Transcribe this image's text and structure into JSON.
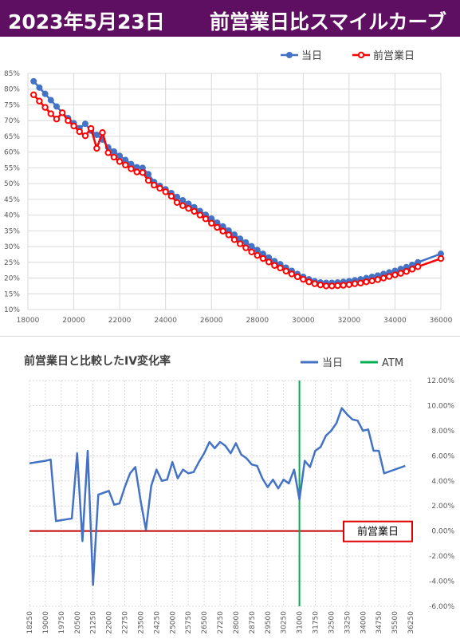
{
  "header": {
    "date": "2023年5月23日",
    "title": "前営業日比スマイルカーブ"
  },
  "chart_data": [
    {
      "type": "line",
      "title": "",
      "xlabel": "",
      "ylabel": "",
      "xlim": [
        18000,
        36000
      ],
      "ylim": [
        0.1,
        0.85
      ],
      "x_ticks": [
        18000,
        20000,
        22000,
        24000,
        26000,
        28000,
        30000,
        32000,
        34000,
        36000
      ],
      "y_ticks": [
        0.1,
        0.15,
        0.2,
        0.25,
        0.3,
        0.35,
        0.4,
        0.45,
        0.5,
        0.55,
        0.6,
        0.65,
        0.7,
        0.75,
        0.8,
        0.85
      ],
      "y_format": "percent0",
      "grid": true,
      "legend": "top-right",
      "series": [
        {
          "name": "当日",
          "color": "#4472c4",
          "points": [
            [
              18250,
              0.825
            ],
            [
              18500,
              0.805
            ],
            [
              18750,
              0.785
            ],
            [
              19000,
              0.765
            ],
            [
              19250,
              0.745
            ],
            [
              19500,
              0.725
            ],
            [
              19750,
              0.708
            ],
            [
              20000,
              0.692
            ],
            [
              20250,
              0.676
            ],
            [
              20500,
              0.69
            ],
            [
              20750,
              0.668
            ],
            [
              21000,
              0.655
            ],
            [
              21250,
              0.64
            ],
            [
              21500,
              0.615
            ],
            [
              21750,
              0.602
            ],
            [
              22000,
              0.588
            ],
            [
              22250,
              0.575
            ],
            [
              22500,
              0.562
            ],
            [
              22750,
              0.552
            ],
            [
              23000,
              0.55
            ],
            [
              23250,
              0.53
            ],
            [
              23500,
              0.505
            ],
            [
              23750,
              0.493
            ],
            [
              24000,
              0.482
            ],
            [
              24250,
              0.47
            ],
            [
              24500,
              0.458
            ],
            [
              24750,
              0.447
            ],
            [
              25000,
              0.436
            ],
            [
              25250,
              0.425
            ],
            [
              25500,
              0.413
            ],
            [
              25750,
              0.401
            ],
            [
              26000,
              0.389
            ],
            [
              26250,
              0.376
            ],
            [
              26500,
              0.364
            ],
            [
              26750,
              0.351
            ],
            [
              27000,
              0.338
            ],
            [
              27250,
              0.325
            ],
            [
              27500,
              0.313
            ],
            [
              27750,
              0.301
            ],
            [
              28000,
              0.289
            ],
            [
              28250,
              0.277
            ],
            [
              28500,
              0.265
            ],
            [
              28750,
              0.254
            ],
            [
              29000,
              0.244
            ],
            [
              29250,
              0.233
            ],
            [
              29500,
              0.223
            ],
            [
              29750,
              0.213
            ],
            [
              30000,
              0.204
            ],
            [
              30250,
              0.196
            ],
            [
              30500,
              0.19
            ],
            [
              30750,
              0.186
            ],
            [
              31000,
              0.185
            ],
            [
              31250,
              0.185
            ],
            [
              31500,
              0.186
            ],
            [
              31750,
              0.188
            ],
            [
              32000,
              0.19
            ],
            [
              32250,
              0.193
            ],
            [
              32500,
              0.196
            ],
            [
              32750,
              0.2
            ],
            [
              33000,
              0.204
            ],
            [
              33250,
              0.208
            ],
            [
              33500,
              0.213
            ],
            [
              33750,
              0.218
            ],
            [
              34000,
              0.223
            ],
            [
              34250,
              0.229
            ],
            [
              34500,
              0.235
            ],
            [
              34750,
              0.242
            ],
            [
              35000,
              0.25
            ],
            [
              36000,
              0.277
            ]
          ]
        },
        {
          "name": "前営業日",
          "color": "#ff0000",
          "points": [
            [
              18250,
              0.782
            ],
            [
              18500,
              0.762
            ],
            [
              18750,
              0.742
            ],
            [
              19000,
              0.722
            ],
            [
              19250,
              0.705
            ],
            [
              19500,
              0.725
            ],
            [
              19750,
              0.7
            ],
            [
              20000,
              0.683
            ],
            [
              20250,
              0.665
            ],
            [
              20500,
              0.652
            ],
            [
              20750,
              0.675
            ],
            [
              21000,
              0.612
            ],
            [
              21250,
              0.662
            ],
            [
              21500,
              0.598
            ],
            [
              21750,
              0.584
            ],
            [
              22000,
              0.57
            ],
            [
              22250,
              0.559
            ],
            [
              22500,
              0.547
            ],
            [
              22750,
              0.537
            ],
            [
              23000,
              0.535
            ],
            [
              23250,
              0.51
            ],
            [
              23500,
              0.495
            ],
            [
              23750,
              0.485
            ],
            [
              24000,
              0.474
            ],
            [
              24250,
              0.46
            ],
            [
              24500,
              0.44
            ],
            [
              24750,
              0.43
            ],
            [
              25000,
              0.421
            ],
            [
              25250,
              0.412
            ],
            [
              25500,
              0.4
            ],
            [
              25750,
              0.388
            ],
            [
              26000,
              0.374
            ],
            [
              26250,
              0.361
            ],
            [
              26500,
              0.349
            ],
            [
              26750,
              0.337
            ],
            [
              27000,
              0.322
            ],
            [
              27250,
              0.309
            ],
            [
              27500,
              0.296
            ],
            [
              27750,
              0.283
            ],
            [
              28000,
              0.272
            ],
            [
              28250,
              0.262
            ],
            [
              28500,
              0.251
            ],
            [
              28750,
              0.24
            ],
            [
              29000,
              0.232
            ],
            [
              29250,
              0.222
            ],
            [
              29500,
              0.213
            ],
            [
              29750,
              0.204
            ],
            [
              30000,
              0.196
            ],
            [
              30250,
              0.188
            ],
            [
              30500,
              0.182
            ],
            [
              30750,
              0.178
            ],
            [
              31000,
              0.175
            ],
            [
              31250,
              0.175
            ],
            [
              31500,
              0.176
            ],
            [
              31750,
              0.177
            ],
            [
              32000,
              0.179
            ],
            [
              32250,
              0.182
            ],
            [
              32500,
              0.184
            ],
            [
              32750,
              0.188
            ],
            [
              33000,
              0.191
            ],
            [
              33250,
              0.195
            ],
            [
              33500,
              0.2
            ],
            [
              33750,
              0.205
            ],
            [
              34000,
              0.21
            ],
            [
              34250,
              0.215
            ],
            [
              34500,
              0.221
            ],
            [
              34750,
              0.228
            ],
            [
              35000,
              0.236
            ],
            [
              36000,
              0.262
            ]
          ]
        }
      ]
    },
    {
      "type": "line",
      "title": "前営業日と比較したIV変化率",
      "xlabel": "",
      "ylabel": "",
      "xlim": [
        18250,
        36250
      ],
      "ylim": [
        -0.06,
        0.12
      ],
      "x_ticks": [
        18250,
        19000,
        19750,
        20500,
        21250,
        22000,
        22750,
        23500,
        24250,
        25000,
        25750,
        26500,
        27250,
        28000,
        28750,
        29500,
        30250,
        31000,
        31750,
        32500,
        33250,
        34000,
        34750,
        35500,
        36250
      ],
      "y_ticks": [
        -0.06,
        -0.04,
        -0.02,
        0.0,
        0.02,
        0.04,
        0.06,
        0.08,
        0.1,
        0.12
      ],
      "y_format": "percent2",
      "y_axis_position": "right",
      "grid": true,
      "legend": "top-right",
      "atm_x": 31000,
      "reference_line_y": 0,
      "reference_label": "前営業日",
      "series": [
        {
          "name": "当日",
          "color": "#4472c4",
          "points": [
            [
              18250,
              0.054
            ],
            [
              19000,
              0.056
            ],
            [
              19250,
              0.057
            ],
            [
              19500,
              0.008
            ],
            [
              20250,
              0.01
            ],
            [
              20500,
              0.062
            ],
            [
              20750,
              -0.008
            ],
            [
              21000,
              0.064
            ],
            [
              21250,
              -0.043
            ],
            [
              21500,
              0.029
            ],
            [
              22000,
              0.032
            ],
            [
              22250,
              0.021
            ],
            [
              22500,
              0.022
            ],
            [
              22750,
              0.035
            ],
            [
              23000,
              0.046
            ],
            [
              23250,
              0.051
            ],
            [
              23500,
              0.024
            ],
            [
              23750,
              0.001
            ],
            [
              24000,
              0.036
            ],
            [
              24250,
              0.049
            ],
            [
              24500,
              0.04
            ],
            [
              24750,
              0.041
            ],
            [
              25000,
              0.055
            ],
            [
              25250,
              0.042
            ],
            [
              25500,
              0.049
            ],
            [
              25750,
              0.046
            ],
            [
              26000,
              0.047
            ],
            [
              26250,
              0.055
            ],
            [
              26500,
              0.062
            ],
            [
              26750,
              0.071
            ],
            [
              27000,
              0.066
            ],
            [
              27250,
              0.071
            ],
            [
              27500,
              0.068
            ],
            [
              27750,
              0.062
            ],
            [
              28000,
              0.07
            ],
            [
              28250,
              0.061
            ],
            [
              28500,
              0.058
            ],
            [
              28750,
              0.053
            ],
            [
              29000,
              0.052
            ],
            [
              29250,
              0.042
            ],
            [
              29500,
              0.035
            ],
            [
              29750,
              0.041
            ],
            [
              30000,
              0.034
            ],
            [
              30250,
              0.041
            ],
            [
              30500,
              0.038
            ],
            [
              30750,
              0.049
            ],
            [
              31000,
              0.025
            ],
            [
              31250,
              0.056
            ],
            [
              31500,
              0.051
            ],
            [
              31750,
              0.064
            ],
            [
              32000,
              0.067
            ],
            [
              32250,
              0.076
            ],
            [
              32500,
              0.08
            ],
            [
              32750,
              0.086
            ],
            [
              33000,
              0.098
            ],
            [
              33250,
              0.093
            ],
            [
              33500,
              0.089
            ],
            [
              33750,
              0.088
            ],
            [
              34000,
              0.08
            ],
            [
              34250,
              0.081
            ],
            [
              34500,
              0.064
            ],
            [
              34750,
              0.064
            ],
            [
              35000,
              0.046
            ],
            [
              35500,
              0.049
            ],
            [
              36000,
              0.052
            ]
          ]
        },
        {
          "name": "ATM",
          "color": "#00b050"
        }
      ]
    }
  ]
}
